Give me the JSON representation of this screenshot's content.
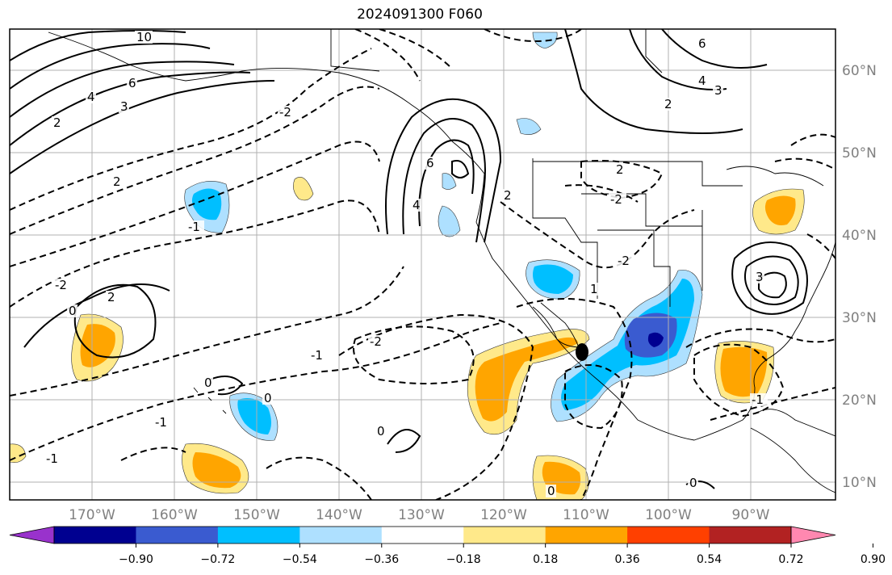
{
  "title": "2024091300 F060",
  "map": {
    "lon_labels": [
      "170°W",
      "160°W",
      "150°W",
      "140°W",
      "130°W",
      "120°W",
      "110°W",
      "100°W",
      "90°W"
    ],
    "lat_labels": [
      "60°N",
      "50°N",
      "40°N",
      "30°N",
      "20°N",
      "10°N"
    ],
    "contour_labels": [
      "10",
      "6",
      "4",
      "3",
      "2",
      "6",
      "4",
      "3",
      "2",
      "2",
      "-2",
      "-2",
      "-1",
      "-2",
      "0",
      "-1",
      "2",
      "2",
      "-2",
      "3",
      "-1",
      "0",
      "0",
      "-1",
      "-1",
      "0",
      "0",
      "-2",
      "2",
      "1",
      "0",
      "6",
      "4"
    ],
    "marker": "storm-center"
  },
  "colorbar": {
    "colors": [
      "#9932cc",
      "#000090",
      "#3a5bd0",
      "#00bfff",
      "#aee0ff",
      "#ffffff",
      "#ffe98a",
      "#ffa500",
      "#ff4000",
      "#b22222",
      "#ff88b0"
    ],
    "ticks": [
      "−0.90",
      "−0.72",
      "−0.54",
      "−0.36",
      "−0.18",
      "0.18",
      "0.36",
      "0.54",
      "0.72",
      "0.90"
    ]
  }
}
